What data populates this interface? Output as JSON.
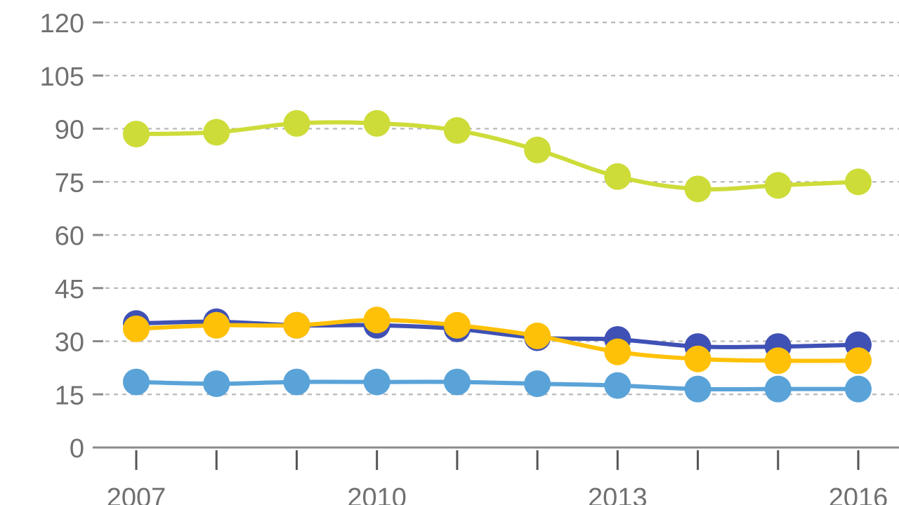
{
  "chart_data": {
    "type": "line",
    "title": "",
    "xlabel": "",
    "ylabel": "",
    "x": [
      2007,
      2008,
      2009,
      2010,
      2011,
      2012,
      2013,
      2014,
      2015,
      2016
    ],
    "x_tick_labels": [
      "2007",
      "2010",
      "2013",
      "2016"
    ],
    "y_tick_labels": [
      "0",
      "15",
      "30",
      "45",
      "60",
      "75",
      "90",
      "105",
      "120"
    ],
    "ylim": [
      0,
      120
    ],
    "grid": true,
    "legend": "none",
    "series": [
      {
        "color": "#cddc39",
        "values": [
          88.5,
          89,
          91.5,
          91.5,
          89.5,
          84,
          76.5,
          73,
          74,
          75
        ]
      },
      {
        "color": "#3f51b5",
        "values": [
          35,
          35.5,
          34.5,
          34.5,
          33.5,
          31,
          30.5,
          28.5,
          28.5,
          29
        ]
      },
      {
        "color": "#ffc107",
        "values": [
          33.5,
          34.5,
          34.5,
          36,
          34.5,
          31.5,
          27,
          25,
          24.5,
          24.5
        ]
      },
      {
        "color": "#5aa3d8",
        "values": [
          18.5,
          18,
          18.5,
          18.5,
          18.5,
          18,
          17.5,
          16.5,
          16.5,
          16.5
        ]
      }
    ]
  }
}
